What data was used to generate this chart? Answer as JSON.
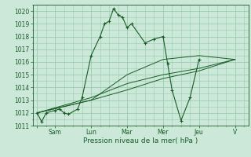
{
  "background_color": "#cce8d8",
  "grid_color": "#99ccb0",
  "line_color": "#1a5c28",
  "xlabel": "Pression niveau de la mer( hPa )",
  "ylim": [
    1011,
    1020.5
  ],
  "yticks": [
    1011,
    1012,
    1013,
    1014,
    1015,
    1016,
    1017,
    1018,
    1019,
    1020
  ],
  "x_tick_labels": [
    "",
    "Sam",
    "Lun",
    "Mar",
    "Mer",
    "Jeu",
    "V"
  ],
  "x_tick_positions": [
    0,
    2,
    6,
    10,
    14,
    18,
    22
  ],
  "series": [
    [
      0,
      1012.0,
      0.5,
      1011.3,
      1.0,
      1012.0,
      2.0,
      1012.2,
      2.5,
      1012.3,
      3.0,
      1012.0,
      3.5,
      1011.9,
      4.5,
      1012.3,
      5.0,
      1013.2,
      6.0,
      1016.5,
      7.0,
      1018.0,
      7.5,
      1019.0,
      8.0,
      1019.2,
      8.5,
      1020.2,
      9.0,
      1019.7,
      9.5,
      1019.5,
      10.0,
      1018.7,
      10.5,
      1019.0,
      12.0,
      1017.5,
      13.0,
      1017.8,
      14.0,
      1018.0,
      14.5,
      1015.9,
      15.0,
      1013.8,
      16.0,
      1011.4,
      17.0,
      1013.2,
      18.0,
      1016.2
    ],
    [
      0,
      1012.0,
      6,
      1013.0,
      10,
      1015.0,
      14,
      1016.2,
      18,
      1016.5,
      22,
      1016.2
    ],
    [
      0,
      1012.0,
      6,
      1013.2,
      10,
      1014.3,
      14,
      1015.0,
      18,
      1015.5,
      22,
      1016.2
    ],
    [
      0,
      1012.0,
      6,
      1013.0,
      10,
      1013.8,
      14,
      1014.7,
      18,
      1015.3,
      22,
      1016.2
    ]
  ],
  "figsize": [
    3.2,
    2.0
  ],
  "dpi": 100
}
